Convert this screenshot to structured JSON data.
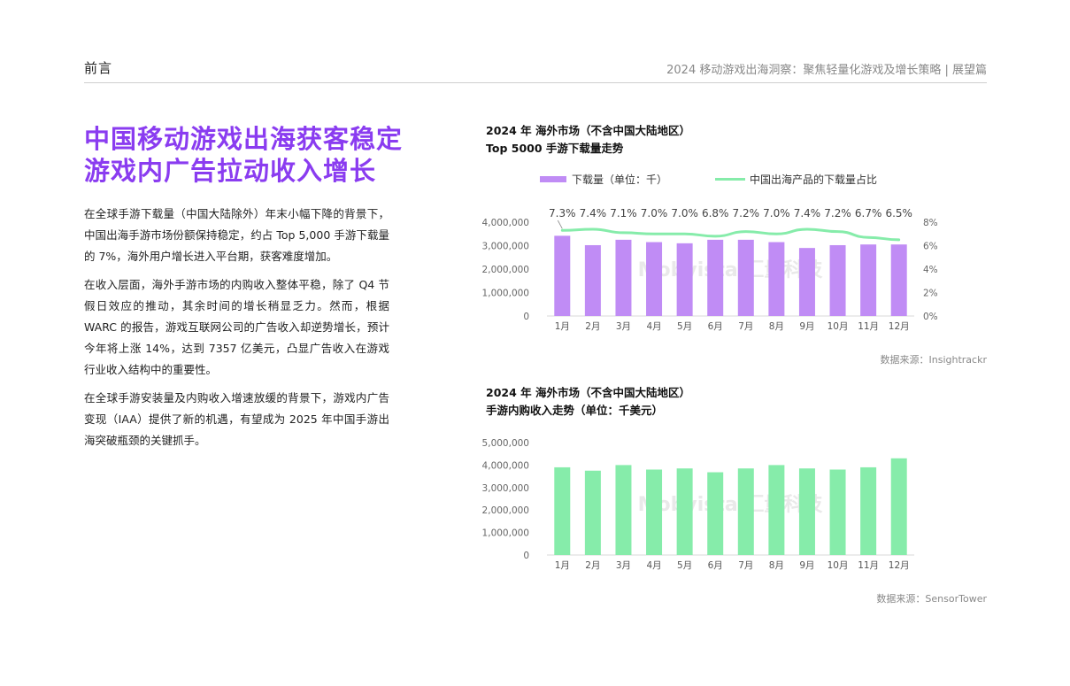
{
  "header": {
    "section": "前言",
    "doc_title": "2024 移动游戏出海洞察：聚焦轻量化游戏及增长策略 | 展望篇"
  },
  "headline": {
    "line1": "中国移动游戏出海获客稳定",
    "line2": "游戏内广告拉动收入增长"
  },
  "body": {
    "p1": "在全球手游下载量（中国大陆除外）年末小幅下降的背景下，中国出海手游市场份额保持稳定，约占 Top 5,000 手游下载量的 7%，海外用户增长进入平台期，获客难度增加。",
    "p2": "在收入层面，海外手游市场的内购收入整体平稳，除了 Q4 节假日效应的推动，其余时间的增长稍显乏力。然而，根据 WARC 的报告，游戏互联网公司的广告收入却逆势增长，预计今年将上涨 14%，达到 7357 亿美元，凸显广告收入在游戏行业收入结构中的重要性。",
    "p3": "在全球手游安装量及内购收入增速放缓的背景下，游戏内广告变现（IAA）提供了新的机遇，有望成为 2025 年中国手游出海突破瓶颈的关键抓手。"
  },
  "watermark": "Mobvista 汇量科技",
  "chart_data": [
    {
      "type": "bar",
      "title_line1": "2024 年 海外市场（不含中国大陆地区）",
      "title_line2": "Top 5000 手游下载量走势",
      "categories": [
        "1月",
        "2月",
        "3月",
        "4月",
        "5月",
        "6月",
        "7月",
        "8月",
        "9月",
        "10月",
        "11月",
        "12月"
      ],
      "series": [
        {
          "name": "下载量（单位：千）",
          "type": "bar",
          "axis": "left",
          "color": "#c08cf5",
          "values": [
            3420000,
            3020000,
            3250000,
            3150000,
            3100000,
            3250000,
            3250000,
            3150000,
            2900000,
            3020000,
            3050000,
            3050000
          ]
        },
        {
          "name": "中国出海产品的下载量占比",
          "type": "line",
          "axis": "right",
          "color": "#86ecaa",
          "values": [
            7.3,
            7.4,
            7.1,
            7.0,
            7.0,
            6.8,
            7.2,
            7.0,
            7.4,
            7.2,
            6.7,
            6.5
          ],
          "labels": [
            "7.3%",
            "7.4%",
            "7.1%",
            "7.0%",
            "7.0%",
            "6.8%",
            "7.2%",
            "7.0%",
            "7.4%",
            "7.2%",
            "6.7%",
            "6.5%"
          ]
        }
      ],
      "y_left_ticks": [
        "0",
        "1,000,000",
        "2,000,000",
        "3,000,000",
        "4,000,000"
      ],
      "ylim_left": [
        0,
        4000000
      ],
      "y_right_ticks": [
        "0%",
        "2%",
        "4%",
        "6%",
        "8%"
      ],
      "ylim_right": [
        0,
        8
      ],
      "legend": "top",
      "grid": false,
      "source": "数据来源：Insightrackr"
    },
    {
      "type": "bar",
      "title_line1": "2024 年 海外市场（不含中国大陆地区）",
      "title_line2": "手游内购收入走势（单位：千美元）",
      "categories": [
        "1月",
        "2月",
        "3月",
        "4月",
        "5月",
        "6月",
        "7月",
        "8月",
        "9月",
        "10月",
        "11月",
        "12月"
      ],
      "series": [
        {
          "type": "bar",
          "color": "#86ecaa",
          "values": [
            3900000,
            3750000,
            4000000,
            3800000,
            3850000,
            3680000,
            3850000,
            4000000,
            3850000,
            3800000,
            3900000,
            4300000
          ]
        }
      ],
      "y_ticks": [
        "0",
        "1,000,000",
        "2,000,000",
        "3,000,000",
        "4,000,000",
        "5,000,000"
      ],
      "ylim": [
        0,
        5000000
      ],
      "grid": false,
      "source": "数据来源：SensorTower"
    }
  ]
}
